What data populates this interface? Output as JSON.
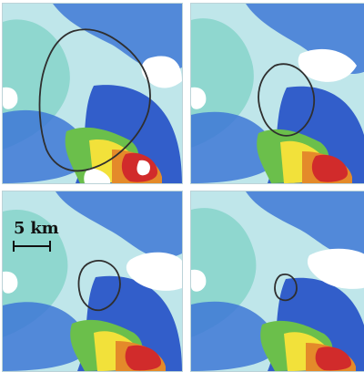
{
  "figure": {
    "scalebar": {
      "label": "5 km"
    },
    "palette": {
      "light_cyan": "#bfe6ea",
      "teal": "#7fd1c7",
      "mid_blue": "#3e78d6",
      "dark_blue": "#1f3fb8",
      "green": "#6bbf4b",
      "yellow": "#f2e13a",
      "orange": "#e48a2a",
      "red": "#d12b2b",
      "white": "#ffffff",
      "contour": "#2f2f2f"
    },
    "panels": [
      {
        "name": "panel-1"
      },
      {
        "name": "panel-2"
      },
      {
        "name": "panel-3"
      },
      {
        "name": "panel-4"
      }
    ]
  }
}
